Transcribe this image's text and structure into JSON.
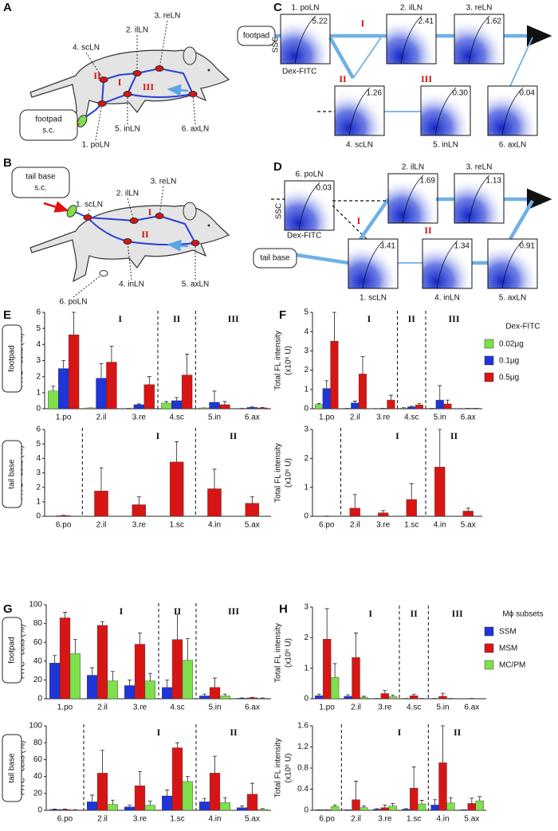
{
  "panel_a": {
    "label": "A",
    "site": [
      "footpad",
      "s.c."
    ],
    "nodes": [
      "1. poLN",
      "2. ilLN",
      "3. reLN",
      "4. scLN",
      "5. inLN",
      "6. axLN"
    ],
    "routes": [
      "I",
      "II",
      "III"
    ]
  },
  "panel_b": {
    "label": "B",
    "site": [
      "tail base",
      "s.c."
    ],
    "nodes": [
      "1. scLN",
      "2. ilLN",
      "3. reLN",
      "4. inLN",
      "5. axLN",
      "6. poLN"
    ],
    "routes": [
      "I",
      "II"
    ]
  },
  "panel_c": {
    "label": "C",
    "site": "footpad",
    "xlabel": "Dex-FITC",
    "ylabel": "SSC",
    "routes": [
      "I",
      "II",
      "III"
    ],
    "plots": [
      {
        "name": "1. poLN",
        "value": "5.22"
      },
      {
        "name": "2. ilLN",
        "value": "2.41"
      },
      {
        "name": "3. reLN",
        "value": "1.62"
      },
      {
        "name": "4. scLN",
        "value": "1.26"
      },
      {
        "name": "5. inLN",
        "value": "0.30"
      },
      {
        "name": "6. axLN",
        "value": "0.04"
      }
    ]
  },
  "panel_d": {
    "label": "D",
    "site": "tail base",
    "xlabel": "Dex-FITC",
    "ylabel": "SSC",
    "routes": [
      "I",
      "II"
    ],
    "plots": [
      {
        "name": "6. poLN",
        "value": "0.03"
      },
      {
        "name": "2. ilLN",
        "value": "1.69"
      },
      {
        "name": "3. reLN",
        "value": "1.13"
      },
      {
        "name": "1. scLN",
        "value": "3.41"
      },
      {
        "name": "4. inLN",
        "value": "1.34"
      },
      {
        "name": "5. axLN",
        "value": "0.91"
      }
    ]
  },
  "chart_data": [
    {
      "type": "bar",
      "panel": "E",
      "group": "footpad",
      "ylabel": [
        "FITC⁺ cells (%)"
      ],
      "sections": [
        "I",
        "II",
        "III"
      ],
      "categories": [
        "1.po",
        "2.il",
        "3.re",
        "4.sc",
        "5.in",
        "6.ax"
      ],
      "ylim": [
        0,
        6
      ],
      "yticks": [
        0,
        1,
        2,
        3,
        4,
        5,
        6
      ],
      "series": [
        {
          "color": "#7ee04c",
          "values": [
            1.1,
            0.05,
            0.02,
            0.35,
            0.05,
            0.02
          ],
          "errors": [
            0.3,
            0,
            0,
            0.1,
            0,
            0
          ]
        },
        {
          "color": "#1f35d8",
          "values": [
            2.5,
            1.9,
            0.25,
            0.5,
            0.4,
            0.08
          ],
          "errors": [
            0.5,
            0.9,
            0.05,
            0.2,
            0.7,
            0.03
          ]
        },
        {
          "color": "#d81515",
          "values": [
            4.6,
            2.9,
            1.5,
            2.1,
            0.25,
            0.05
          ],
          "errors": [
            1.4,
            1.0,
            0.5,
            1.3,
            0.2,
            0.03
          ]
        }
      ]
    },
    {
      "type": "bar",
      "group": "tail base",
      "ylabel": [
        "FITC⁺ cells (%)"
      ],
      "sections": [
        "I",
        "II"
      ],
      "categories": [
        "6.po",
        "2.il",
        "3.re",
        "1.sc",
        "4.in",
        "5.ax"
      ],
      "ylim": [
        0,
        6
      ],
      "yticks": [
        0,
        1,
        2,
        3,
        4,
        5,
        6
      ],
      "series": [
        {
          "color": "#d81515",
          "values": [
            0.05,
            1.75,
            0.8,
            3.75,
            1.9,
            0.9
          ],
          "errors": [
            0.02,
            1.6,
            0.55,
            1.4,
            1.35,
            0.45
          ]
        }
      ]
    },
    {
      "type": "bar",
      "panel": "F",
      "ylabel": [
        "Total FL intensity",
        "(x10⁶ U)"
      ],
      "sections": [
        "I",
        "II",
        "III"
      ],
      "legend_title": "Dex-FITC",
      "categories": [
        "1.po",
        "2.il",
        "3.re",
        "4.sc",
        "5.in",
        "6.ax"
      ],
      "ylim": [
        0,
        5
      ],
      "yticks": [
        0,
        1,
        2,
        3,
        4,
        5
      ],
      "series": [
        {
          "name": "0.02μg",
          "color": "#7ee04c",
          "values": [
            0.22,
            0.02,
            0.01,
            0.03,
            0.02,
            0.01
          ],
          "errors": [
            0.05,
            0,
            0,
            0.02,
            0,
            0
          ]
        },
        {
          "name": "0.1μg",
          "color": "#1f35d8",
          "values": [
            1.05,
            0.3,
            0.02,
            0.1,
            0.45,
            0.02
          ],
          "errors": [
            0.4,
            0.1,
            0,
            0.03,
            0.75,
            0
          ]
        },
        {
          "name": "0.5μg",
          "color": "#d81515",
          "values": [
            3.5,
            1.8,
            0.45,
            0.2,
            0.25,
            0.02
          ],
          "errors": [
            1.5,
            0.9,
            0.25,
            0.08,
            0.2,
            0
          ]
        }
      ]
    },
    {
      "type": "bar",
      "ylabel": [
        "Total FL intensity",
        "(x10⁶ U)"
      ],
      "sections": [
        "I",
        "II"
      ],
      "categories": [
        "6.po",
        "2.il",
        "3.re",
        "1.sc",
        "4.in",
        "5.ax"
      ],
      "ylim": [
        0,
        3
      ],
      "yticks": [
        0,
        1,
        2,
        3
      ],
      "series": [
        {
          "color": "#d81515",
          "values": [
            0.01,
            0.28,
            0.12,
            0.58,
            1.7,
            0.18
          ],
          "errors": [
            0,
            0.47,
            0.08,
            0.55,
            1.3,
            0.1
          ]
        }
      ]
    },
    {
      "type": "bar",
      "panel": "G",
      "group": "footpad",
      "ylabel": [
        "FITC⁺ cells (%)"
      ],
      "sections": [
        "I",
        "II",
        "III"
      ],
      "categories": [
        "1.po",
        "2.il",
        "3.re",
        "4.sc",
        "5.in",
        "6.ax"
      ],
      "ylim": [
        0,
        100
      ],
      "yticks": [
        0,
        20,
        40,
        60,
        80,
        100
      ],
      "series": [
        {
          "color": "#1f35d8",
          "values": [
            38,
            25,
            14,
            12,
            3,
            0.5
          ],
          "errors": [
            8,
            8,
            6,
            8,
            2,
            0.3
          ]
        },
        {
          "color": "#d81515",
          "values": [
            86,
            78,
            58,
            63,
            12,
            1
          ],
          "errors": [
            6,
            4,
            12,
            27,
            10,
            0.5
          ]
        },
        {
          "color": "#7ee04c",
          "values": [
            48,
            19,
            19,
            41,
            3,
            0.5
          ],
          "errors": [
            15,
            10,
            8,
            23,
            2,
            0.3
          ]
        }
      ]
    },
    {
      "type": "bar",
      "group": "tail base",
      "ylabel": [
        "FITC⁺ cells (%)"
      ],
      "sections": [
        "I",
        "II"
      ],
      "categories": [
        "6.po",
        "2.il",
        "3.re",
        "1.sc",
        "4.in",
        "5.ax"
      ],
      "ylim": [
        0,
        100
      ],
      "yticks": [
        0,
        20,
        40,
        60,
        80,
        100
      ],
      "series": [
        {
          "color": "#1f35d8",
          "values": [
            1,
            10,
            4,
            17,
            10,
            3
          ],
          "errors": [
            0.5,
            8,
            2,
            7,
            4,
            2
          ]
        },
        {
          "color": "#d81515",
          "values": [
            1,
            44,
            29,
            74,
            44,
            19
          ],
          "errors": [
            0.5,
            27,
            17,
            6,
            20,
            13
          ]
        },
        {
          "color": "#7ee04c",
          "values": [
            0.5,
            7,
            6,
            34,
            9,
            1
          ],
          "errors": [
            0.3,
            5,
            5,
            6,
            6,
            1
          ]
        }
      ]
    },
    {
      "type": "bar",
      "panel": "H",
      "ylabel": [
        "Total FL intensity",
        "(x10⁶ U)"
      ],
      "sections": [
        "I",
        "II",
        "III"
      ],
      "legend_title": "Mϕ subsets",
      "categories": [
        "1.po",
        "2.il",
        "3.re",
        "4.sc",
        "5.in",
        "6.ax"
      ],
      "ylim": [
        0,
        3
      ],
      "yticks": [
        0,
        1,
        2,
        3
      ],
      "series": [
        {
          "name": "SSM",
          "color": "#1f35d8",
          "values": [
            0.1,
            0.08,
            0.01,
            0.01,
            0.01,
            0
          ],
          "errors": [
            0.05,
            0.05,
            0,
            0,
            0,
            0
          ]
        },
        {
          "name": "MSM",
          "color": "#d81515",
          "values": [
            1.95,
            1.35,
            0.17,
            0.1,
            0.08,
            0.01
          ],
          "errors": [
            1.0,
            0.8,
            0.1,
            0.05,
            0.1,
            0
          ]
        },
        {
          "name": "MC/PM",
          "color": "#7ee04c",
          "values": [
            0.7,
            0.05,
            0.07,
            0.01,
            0.01,
            0
          ],
          "errors": [
            0.45,
            0.03,
            0.05,
            0,
            0,
            0
          ]
        }
      ]
    },
    {
      "type": "bar",
      "ylabel": [
        "Total FL intensity",
        "(x10⁶ U)"
      ],
      "sections": [
        "I",
        "II"
      ],
      "categories": [
        "6.po",
        "2.il",
        "3.re",
        "1.sc",
        "4.in",
        "5.ax"
      ],
      "ylim": [
        0,
        1.6
      ],
      "yticks": [
        0,
        0.4,
        0.8,
        1.2,
        1.6
      ],
      "series": [
        {
          "color": "#1f35d8",
          "values": [
            0.01,
            0.01,
            0.02,
            0.02,
            0.1,
            0.01
          ],
          "errors": [
            0,
            0,
            0.01,
            0.01,
            0.1,
            0
          ]
        },
        {
          "color": "#d81515",
          "values": [
            0.01,
            0.2,
            0.05,
            0.42,
            0.9,
            0.13
          ],
          "errors": [
            0,
            0.35,
            0.05,
            0.4,
            0.7,
            0.1
          ]
        },
        {
          "color": "#7ee04c",
          "values": [
            0.07,
            0.05,
            0.08,
            0.12,
            0.14,
            0.18
          ],
          "errors": [
            0.03,
            0.03,
            0.05,
            0.07,
            0.1,
            0.08
          ]
        }
      ]
    }
  ]
}
